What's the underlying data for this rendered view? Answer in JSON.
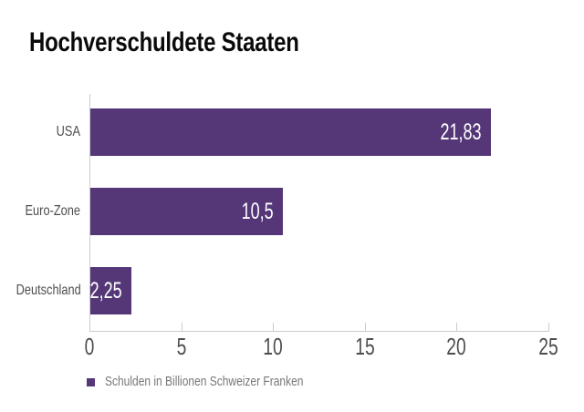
{
  "page": {
    "background": "#ffffff"
  },
  "chart_data": {
    "type": "bar",
    "orientation": "horizontal",
    "title": "Hochverschuldete Staaten",
    "categories": [
      "USA",
      "Euro-Zone",
      "Deutschland"
    ],
    "values": [
      21.83,
      10.5,
      2.25
    ],
    "value_labels": [
      "21,83",
      "10,5",
      "2,25"
    ],
    "xlabel": "",
    "ylabel": "",
    "xlim": [
      0,
      25
    ],
    "x_ticks": [
      0,
      5,
      10,
      15,
      20,
      25
    ],
    "x_tick_labels": [
      "0",
      "5",
      "10",
      "15",
      "20",
      "25"
    ],
    "grid": false,
    "legend_position": "bottom-left",
    "legend": [
      {
        "label": "Schulden in Billionen Schweizer Franken",
        "color": "#553778"
      }
    ]
  },
  "colors": {
    "bar": "#553778",
    "axis_line": "#cccccc",
    "tick_label": "#4d4d4d",
    "category_label": "#4d4d4d",
    "value_label": "#ffffff",
    "title": "#0a0a0a",
    "legend_text": "#777777"
  }
}
